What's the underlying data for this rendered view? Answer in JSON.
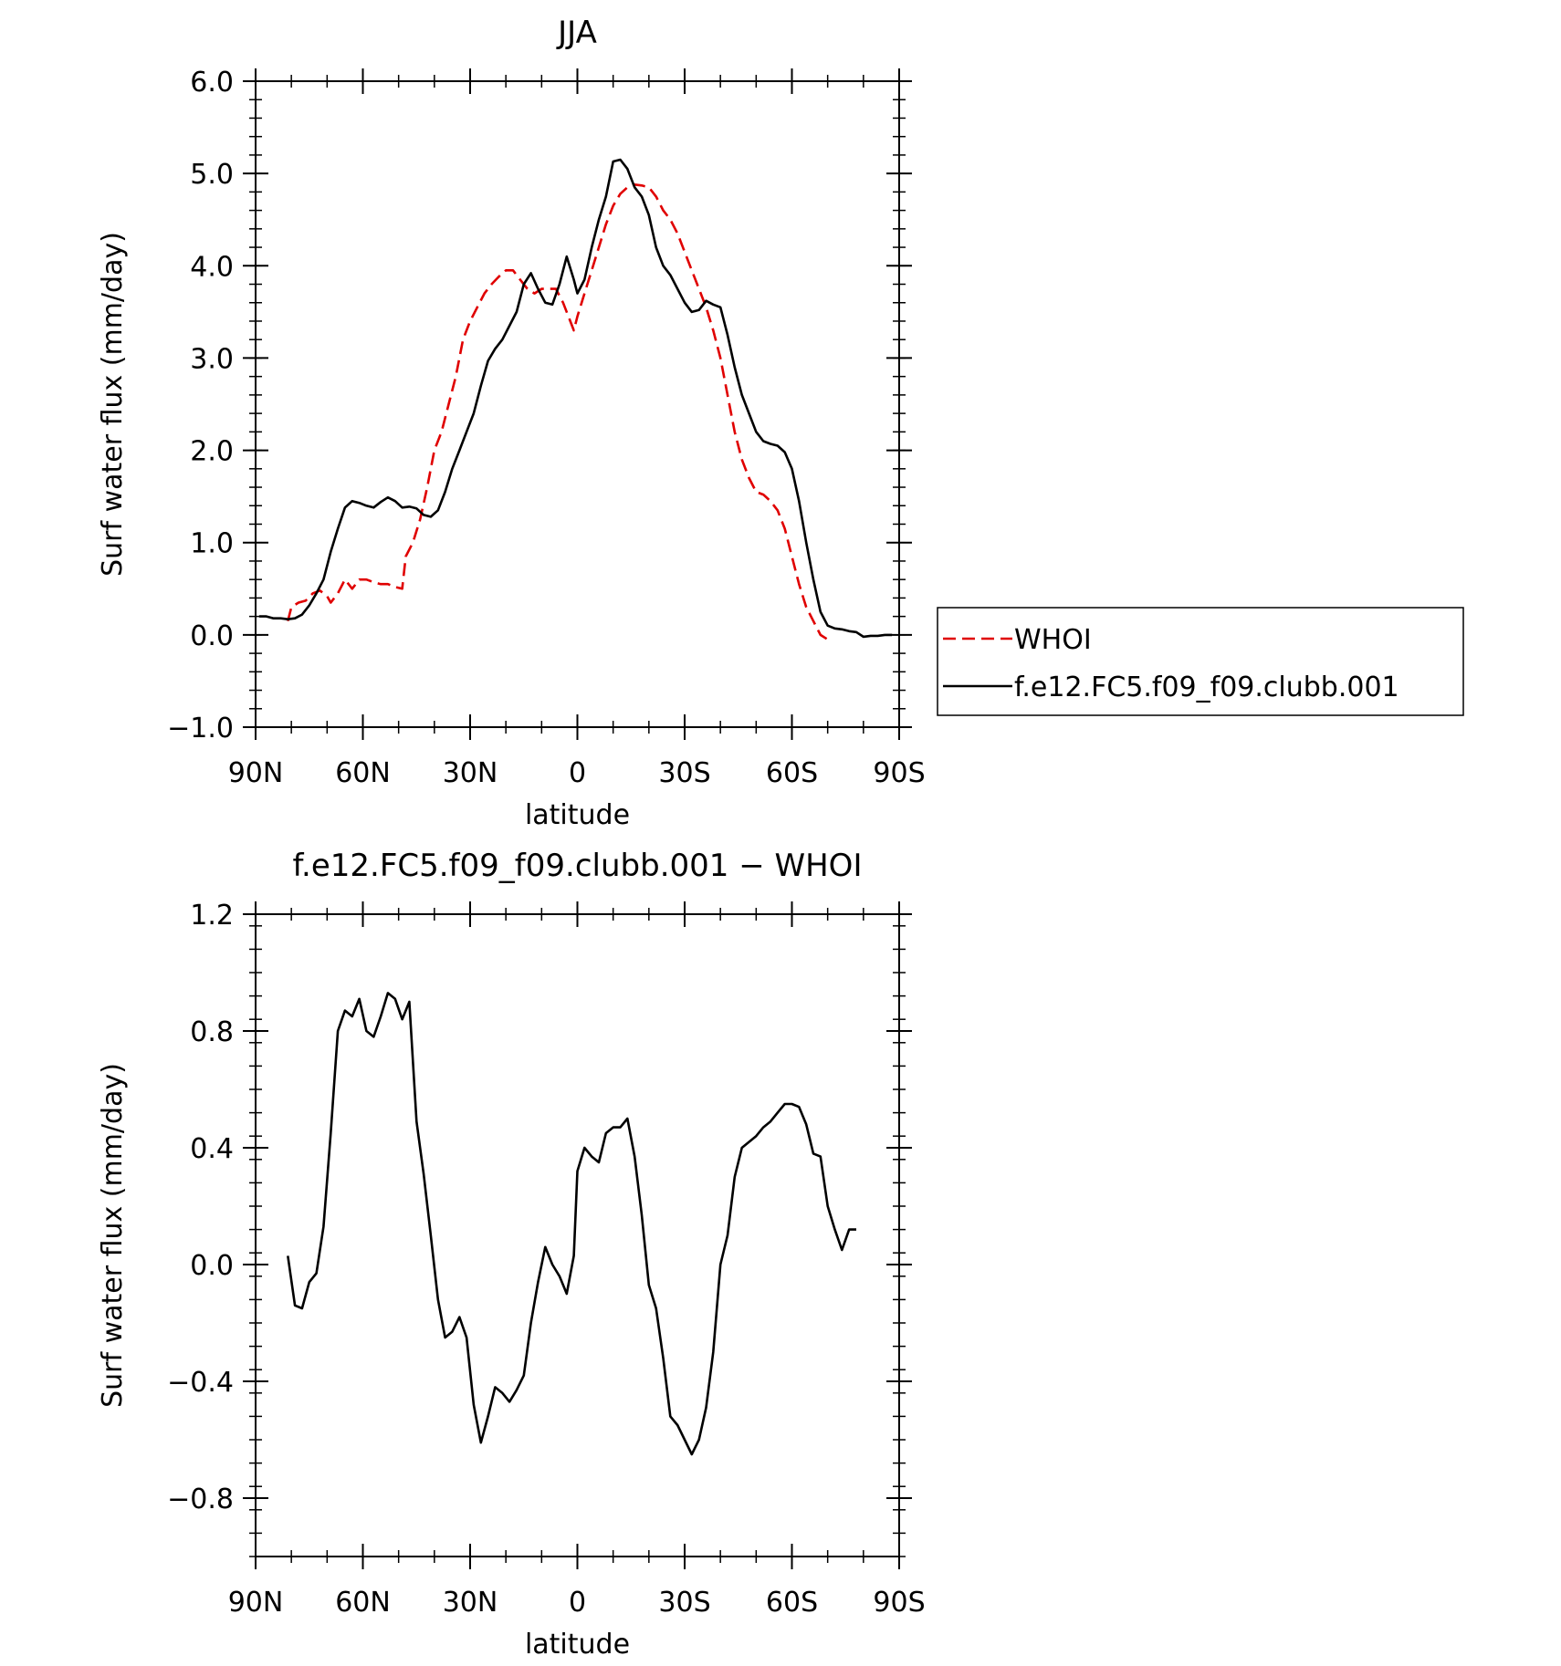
{
  "chart_data": [
    {
      "type": "line",
      "title": "JJA",
      "xlabel": "latitude",
      "ylabel": "Surf water flux (mm/day)",
      "xlim": [
        90,
        -90
      ],
      "ylim": [
        -1.0,
        6.0
      ],
      "x_ticks": [
        {
          "value": 90,
          "label": "90N"
        },
        {
          "value": 60,
          "label": "60N"
        },
        {
          "value": 30,
          "label": "30N"
        },
        {
          "value": 0,
          "label": "0"
        },
        {
          "value": -30,
          "label": "30S"
        },
        {
          "value": -60,
          "label": "60S"
        },
        {
          "value": -90,
          "label": "90S"
        }
      ],
      "y_ticks": [
        {
          "value": -1.0,
          "label": "−1.0"
        },
        {
          "value": 0.0,
          "label": "0.0"
        },
        {
          "value": 1.0,
          "label": "1.0"
        },
        {
          "value": 2.0,
          "label": "2.0"
        },
        {
          "value": 3.0,
          "label": "3.0"
        },
        {
          "value": 4.0,
          "label": "4.0"
        },
        {
          "value": 5.0,
          "label": "5.0"
        },
        {
          "value": 6.0,
          "label": "6.0"
        }
      ],
      "legend": "right",
      "series": [
        {
          "name": "WHOI",
          "color": "#e00000",
          "dash": "dashed",
          "points": [
            [
              81,
              0.15
            ],
            [
              80,
              0.3
            ],
            [
              78,
              0.35
            ],
            [
              76,
              0.37
            ],
            [
              74,
              0.45
            ],
            [
              72,
              0.48
            ],
            [
              70,
              0.42
            ],
            [
              69,
              0.35
            ],
            [
              67,
              0.45
            ],
            [
              65,
              0.6
            ],
            [
              63,
              0.5
            ],
            [
              61,
              0.6
            ],
            [
              59,
              0.6
            ],
            [
              57,
              0.57
            ],
            [
              55,
              0.55
            ],
            [
              53,
              0.55
            ],
            [
              51,
              0.52
            ],
            [
              49,
              0.5
            ],
            [
              48,
              0.85
            ],
            [
              46,
              1.0
            ],
            [
              44,
              1.25
            ],
            [
              42,
              1.6
            ],
            [
              40,
              2.0
            ],
            [
              38,
              2.2
            ],
            [
              36,
              2.5
            ],
            [
              34,
              2.8
            ],
            [
              32,
              3.2
            ],
            [
              30,
              3.4
            ],
            [
              28,
              3.55
            ],
            [
              26,
              3.7
            ],
            [
              24,
              3.8
            ],
            [
              22,
              3.88
            ],
            [
              20,
              3.95
            ],
            [
              18,
              3.95
            ],
            [
              16,
              3.85
            ],
            [
              14,
              3.75
            ],
            [
              12,
              3.7
            ],
            [
              10,
              3.75
            ],
            [
              8,
              3.75
            ],
            [
              6,
              3.75
            ],
            [
              4,
              3.6
            ],
            [
              2,
              3.4
            ],
            [
              1,
              3.3
            ],
            [
              0,
              3.45
            ],
            [
              -2,
              3.7
            ],
            [
              -4,
              3.95
            ],
            [
              -6,
              4.2
            ],
            [
              -8,
              4.45
            ],
            [
              -10,
              4.65
            ],
            [
              -12,
              4.78
            ],
            [
              -14,
              4.85
            ],
            [
              -16,
              4.88
            ],
            [
              -18,
              4.87
            ],
            [
              -20,
              4.85
            ],
            [
              -22,
              4.75
            ],
            [
              -24,
              4.6
            ],
            [
              -26,
              4.5
            ],
            [
              -28,
              4.35
            ],
            [
              -30,
              4.15
            ],
            [
              -32,
              3.95
            ],
            [
              -34,
              3.75
            ],
            [
              -36,
              3.55
            ],
            [
              -38,
              3.3
            ],
            [
              -40,
              3.0
            ],
            [
              -42,
              2.6
            ],
            [
              -44,
              2.2
            ],
            [
              -46,
              1.9
            ],
            [
              -48,
              1.7
            ],
            [
              -50,
              1.55
            ],
            [
              -52,
              1.52
            ],
            [
              -54,
              1.45
            ],
            [
              -56,
              1.35
            ],
            [
              -58,
              1.15
            ],
            [
              -60,
              0.85
            ],
            [
              -62,
              0.55
            ],
            [
              -64,
              0.3
            ],
            [
              -66,
              0.15
            ],
            [
              -68,
              0.0
            ],
            [
              -70,
              -0.05
            ],
            [
              -71,
              -0.07
            ]
          ]
        },
        {
          "name": "f.e12.FC5.f09_f09.clubb.001",
          "color": "#000000",
          "dash": "solid",
          "points": [
            [
              89,
              0.2
            ],
            [
              87,
              0.2
            ],
            [
              85,
              0.18
            ],
            [
              83,
              0.18
            ],
            [
              81,
              0.17
            ],
            [
              79,
              0.18
            ],
            [
              77,
              0.22
            ],
            [
              75,
              0.32
            ],
            [
              73,
              0.45
            ],
            [
              71,
              0.6
            ],
            [
              69,
              0.9
            ],
            [
              67,
              1.15
            ],
            [
              65,
              1.38
            ],
            [
              63,
              1.45
            ],
            [
              61,
              1.43
            ],
            [
              59,
              1.4
            ],
            [
              57,
              1.38
            ],
            [
              55,
              1.44
            ],
            [
              53,
              1.49
            ],
            [
              51,
              1.45
            ],
            [
              49,
              1.38
            ],
            [
              47,
              1.39
            ],
            [
              45,
              1.37
            ],
            [
              43,
              1.3
            ],
            [
              41,
              1.28
            ],
            [
              39,
              1.35
            ],
            [
              37,
              1.55
            ],
            [
              35,
              1.8
            ],
            [
              33,
              2.0
            ],
            [
              31,
              2.2
            ],
            [
              29,
              2.4
            ],
            [
              27,
              2.7
            ],
            [
              25,
              2.97
            ],
            [
              23,
              3.1
            ],
            [
              21,
              3.2
            ],
            [
              19,
              3.35
            ],
            [
              17,
              3.5
            ],
            [
              15,
              3.8
            ],
            [
              13,
              3.92
            ],
            [
              11,
              3.75
            ],
            [
              9,
              3.6
            ],
            [
              7,
              3.58
            ],
            [
              5,
              3.8
            ],
            [
              3,
              4.1
            ],
            [
              1,
              3.85
            ],
            [
              0,
              3.7
            ],
            [
              -2,
              3.85
            ],
            [
              -4,
              4.2
            ],
            [
              -6,
              4.5
            ],
            [
              -8,
              4.75
            ],
            [
              -10,
              5.13
            ],
            [
              -12,
              5.15
            ],
            [
              -14,
              5.05
            ],
            [
              -16,
              4.85
            ],
            [
              -18,
              4.75
            ],
            [
              -20,
              4.55
            ],
            [
              -22,
              4.2
            ],
            [
              -24,
              4.0
            ],
            [
              -26,
              3.9
            ],
            [
              -28,
              3.75
            ],
            [
              -30,
              3.6
            ],
            [
              -32,
              3.5
            ],
            [
              -34,
              3.52
            ],
            [
              -36,
              3.62
            ],
            [
              -38,
              3.58
            ],
            [
              -40,
              3.55
            ],
            [
              -42,
              3.25
            ],
            [
              -44,
              2.9
            ],
            [
              -46,
              2.6
            ],
            [
              -48,
              2.4
            ],
            [
              -50,
              2.2
            ],
            [
              -52,
              2.1
            ],
            [
              -54,
              2.07
            ],
            [
              -56,
              2.05
            ],
            [
              -58,
              1.98
            ],
            [
              -60,
              1.8
            ],
            [
              -62,
              1.45
            ],
            [
              -64,
              1.0
            ],
            [
              -66,
              0.6
            ],
            [
              -68,
              0.25
            ],
            [
              -70,
              0.1
            ],
            [
              -72,
              0.07
            ],
            [
              -74,
              0.06
            ],
            [
              -76,
              0.04
            ],
            [
              -78,
              0.03
            ],
            [
              -80,
              -0.02
            ],
            [
              -82,
              -0.01
            ],
            [
              -84,
              -0.01
            ],
            [
              -86,
              0.0
            ],
            [
              -88,
              0.0
            ]
          ]
        }
      ]
    },
    {
      "type": "line",
      "title": "f.e12.FC5.f09_f09.clubb.001 − WHOI",
      "xlabel": "latitude",
      "ylabel": "Surf water flux (mm/day)",
      "xlim": [
        90,
        -90
      ],
      "ylim": [
        -1.0,
        1.2
      ],
      "x_ticks": [
        {
          "value": 90,
          "label": "90N"
        },
        {
          "value": 60,
          "label": "60N"
        },
        {
          "value": 30,
          "label": "30N"
        },
        {
          "value": 0,
          "label": "0"
        },
        {
          "value": -30,
          "label": "30S"
        },
        {
          "value": -60,
          "label": "60S"
        },
        {
          "value": -90,
          "label": "90S"
        }
      ],
      "y_ticks": [
        {
          "value": -0.8,
          "label": "−0.8"
        },
        {
          "value": -0.4,
          "label": "−0.4"
        },
        {
          "value": 0.0,
          "label": "0.0"
        },
        {
          "value": 0.4,
          "label": "0.4"
        },
        {
          "value": 0.8,
          "label": "0.8"
        },
        {
          "value": 1.2,
          "label": "1.2"
        }
      ],
      "series": [
        {
          "color": "#000000",
          "dash": "solid",
          "points": [
            [
              81,
              0.03
            ],
            [
              79,
              -0.14
            ],
            [
              77,
              -0.15
            ],
            [
              75,
              -0.06
            ],
            [
              73,
              -0.03
            ],
            [
              71,
              0.13
            ],
            [
              69,
              0.45
            ],
            [
              67,
              0.8
            ],
            [
              65,
              0.87
            ],
            [
              63,
              0.85
            ],
            [
              61,
              0.91
            ],
            [
              59,
              0.8
            ],
            [
              57,
              0.78
            ],
            [
              55,
              0.85
            ],
            [
              53,
              0.93
            ],
            [
              51,
              0.91
            ],
            [
              49,
              0.84
            ],
            [
              47,
              0.9
            ],
            [
              45,
              0.49
            ],
            [
              43,
              0.31
            ],
            [
              41,
              0.1
            ],
            [
              39,
              -0.12
            ],
            [
              37,
              -0.25
            ],
            [
              35,
              -0.23
            ],
            [
              33,
              -0.18
            ],
            [
              31,
              -0.25
            ],
            [
              29,
              -0.48
            ],
            [
              27,
              -0.61
            ],
            [
              25,
              -0.52
            ],
            [
              23,
              -0.42
            ],
            [
              21,
              -0.44
            ],
            [
              19,
              -0.47
            ],
            [
              17,
              -0.43
            ],
            [
              15,
              -0.38
            ],
            [
              13,
              -0.2
            ],
            [
              11,
              -0.06
            ],
            [
              9,
              0.06
            ],
            [
              7,
              0.0
            ],
            [
              5,
              -0.04
            ],
            [
              3,
              -0.1
            ],
            [
              1,
              0.03
            ],
            [
              0,
              0.32
            ],
            [
              -2,
              0.4
            ],
            [
              -4,
              0.37
            ],
            [
              -6,
              0.35
            ],
            [
              -8,
              0.45
            ],
            [
              -10,
              0.47
            ],
            [
              -12,
              0.47
            ],
            [
              -14,
              0.5
            ],
            [
              -16,
              0.37
            ],
            [
              -18,
              0.17
            ],
            [
              -20,
              -0.07
            ],
            [
              -22,
              -0.15
            ],
            [
              -24,
              -0.32
            ],
            [
              -26,
              -0.52
            ],
            [
              -28,
              -0.55
            ],
            [
              -30,
              -0.6
            ],
            [
              -32,
              -0.65
            ],
            [
              -34,
              -0.6
            ],
            [
              -36,
              -0.49
            ],
            [
              -38,
              -0.3
            ],
            [
              -40,
              0.0
            ],
            [
              -42,
              0.1
            ],
            [
              -44,
              0.3
            ],
            [
              -46,
              0.4
            ],
            [
              -48,
              0.42
            ],
            [
              -50,
              0.44
            ],
            [
              -52,
              0.47
            ],
            [
              -54,
              0.49
            ],
            [
              -56,
              0.52
            ],
            [
              -58,
              0.55
            ],
            [
              -60,
              0.55
            ],
            [
              -62,
              0.54
            ],
            [
              -64,
              0.48
            ],
            [
              -66,
              0.38
            ],
            [
              -68,
              0.37
            ],
            [
              -70,
              0.2
            ],
            [
              -72,
              0.12
            ],
            [
              -74,
              0.05
            ],
            [
              -76,
              0.12
            ],
            [
              -78,
              0.12
            ]
          ]
        }
      ]
    }
  ]
}
